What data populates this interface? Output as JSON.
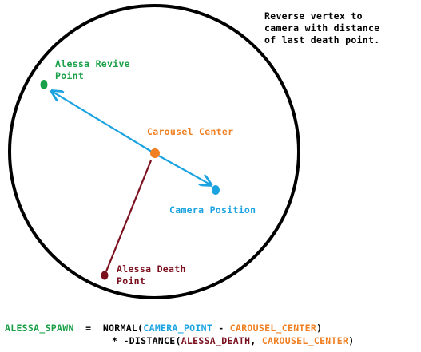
{
  "colors": {
    "revive": "#1aa048",
    "carousel": "#f07f22",
    "camera": "#1aa3e0",
    "death": "#7a0f1e",
    "black": "#000000"
  },
  "note": "Reverse vertex to\ncamera with distance\nof last death point.",
  "labels": {
    "revive": "Alessa Revive\nPoint",
    "carousel": "Carousel Center",
    "camera": "Camera Position",
    "death": "Alessa Death\nPoint"
  },
  "formula": {
    "lhs": "ALESSA_SPAWN",
    "eq": "  =  ",
    "normal_open": "NORMAL(",
    "camera_point": "CAMERA_POINT",
    "minus": " - ",
    "carousel_center": "CAROUSEL_CENTER",
    "close": ")",
    "times_distance": "* -DISTANCE(",
    "alessa_death": "ALESSA_DEATH",
    "comma": ", ",
    "carousel_center2": "CAROUSEL_CENTER",
    "close2": ")"
  }
}
